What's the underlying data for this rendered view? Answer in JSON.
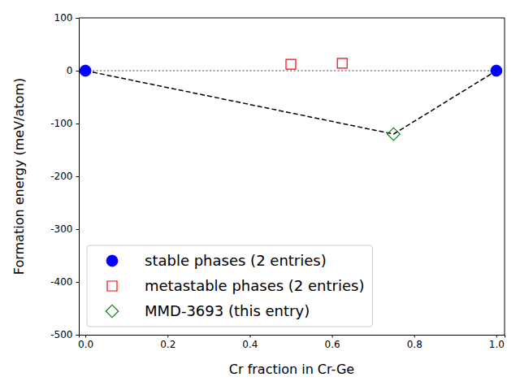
{
  "chart_data": {
    "type": "scatter",
    "x_label": "Cr fraction in Cr-Ge",
    "y_label": "Formation energy (meV/atom)",
    "xlim": [
      -0.016,
      1.02
    ],
    "ylim": [
      -500,
      100
    ],
    "xticks": [
      {
        "value": 0,
        "label": "0.0"
      },
      {
        "value": 0.2,
        "label": "0.2"
      },
      {
        "value": 0.4,
        "label": "0.4"
      },
      {
        "value": 0.6,
        "label": "0.6"
      },
      {
        "value": 0.8,
        "label": "0.8"
      },
      {
        "value": 1,
        "label": "1.0"
      }
    ],
    "yticks": [
      -500,
      -400,
      -300,
      -200,
      -100,
      0,
      100
    ],
    "legend": "lower left",
    "series": [
      {
        "type": "line",
        "line_style": "dotted",
        "color": "gray",
        "x": [
          0,
          1
        ],
        "values": [
          0,
          0
        ]
      },
      {
        "type": "line",
        "line_style": "dashed",
        "color": "black",
        "x": [
          0,
          0.75,
          1
        ],
        "values": [
          0,
          -120,
          0
        ]
      },
      {
        "name": "stable phases (2 entries)",
        "type": "scatter",
        "marker": "circle",
        "color": "blue",
        "x": [
          0,
          1
        ],
        "values": [
          0,
          0
        ]
      },
      {
        "name": "metastable phases (2 entries)",
        "type": "scatter",
        "marker": "square-open",
        "color": "red",
        "x": [
          0.5,
          0.625
        ],
        "values": [
          12,
          14
        ]
      },
      {
        "name": "MMD-3693 (this entry)",
        "type": "scatter",
        "marker": "diamond-open",
        "color": "green",
        "x": [
          0.75
        ],
        "values": [
          -120
        ]
      }
    ]
  }
}
